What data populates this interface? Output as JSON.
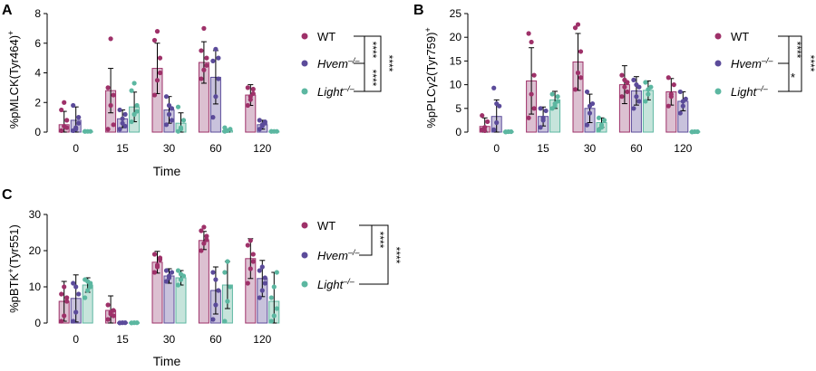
{
  "colors": {
    "wt": "#9e3169",
    "hvem": "#5b4b9a",
    "light": "#5cb7a1"
  },
  "chart_data": [
    {
      "panel": "A",
      "type": "bar",
      "ylabel_main": "%pMLCK(Tyr464)",
      "ylabel_sup": "+",
      "xlabel": "Time",
      "categories": [
        "0",
        "15",
        "30",
        "60",
        "120"
      ],
      "ylim": [
        0,
        8
      ],
      "yticks": [
        "0",
        "2",
        "4",
        "6",
        "8"
      ],
      "series": [
        {
          "name": "WT",
          "values": [
            0.5,
            2.8,
            4.3,
            4.7,
            2.5
          ],
          "err": [
            0.9,
            1.5,
            1.7,
            1.4,
            0.7
          ]
        },
        {
          "name": "Hvem",
          "values": [
            0.8,
            0.9,
            1.5,
            3.7,
            0.5
          ],
          "err": [
            0.9,
            0.6,
            0.9,
            1.8,
            0.3
          ]
        },
        {
          "name": "Light",
          "values": [
            0.05,
            1.7,
            0.6,
            0.1,
            0.05
          ],
          "err": [
            0.05,
            1.0,
            0.7,
            0.1,
            0.05
          ]
        }
      ],
      "points": [
        [
          [
            0.1,
            0.4,
            0.8,
            1.5,
            2.0,
            0.3
          ],
          [
            0.2,
            1.8,
            2.5,
            3.0,
            6.3,
            0.5
          ],
          [
            2.5,
            3.5,
            5.0,
            6.2,
            6.8,
            4.0
          ],
          [
            3.6,
            4.2,
            5.0,
            5.5,
            7.0,
            4.5
          ],
          [
            1.8,
            2.2,
            2.6,
            3.0,
            2.4,
            2.9
          ]
        ],
        [
          [
            0.1,
            0.3,
            1.0,
            1.8,
            0.2,
            0.6
          ],
          [
            0.2,
            0.6,
            1.2,
            1.5,
            0.9,
            0.4
          ],
          [
            0.5,
            1.2,
            1.6,
            2.4,
            1.8,
            0.8
          ],
          [
            1.0,
            2.4,
            3.6,
            4.8,
            5.6,
            5.0
          ],
          [
            0.2,
            0.5,
            0.7,
            0.8,
            0.4,
            0.6
          ]
        ],
        [
          [
            0.05,
            0.05,
            0.05,
            0.05
          ],
          [
            0.7,
            1.2,
            1.8,
            2.8,
            3.3,
            1.4
          ],
          [
            0.05,
            0.3,
            0.8,
            1.7,
            0.2
          ],
          [
            0.05,
            0.1,
            0.2,
            0.3
          ],
          [
            0.05,
            0.05,
            0.05,
            0.05
          ]
        ]
      ],
      "significance": [
        "****",
        "****",
        "****"
      ]
    },
    {
      "panel": "B",
      "type": "bar",
      "ylabel_main": "%pPLCγ2(Tyr759)",
      "ylabel_sup": "+",
      "xlabel": "",
      "categories": [
        "0",
        "15",
        "30",
        "60",
        "120"
      ],
      "ylim": [
        0,
        25
      ],
      "yticks": [
        "0",
        "5",
        "10",
        "15",
        "20",
        "25"
      ],
      "series": [
        {
          "name": "WT",
          "values": [
            1.2,
            10.8,
            14.8,
            10.0,
            8.5
          ],
          "err": [
            1.8,
            7.0,
            6.0,
            4.0,
            2.8
          ]
        },
        {
          "name": "Hvem",
          "values": [
            3.3,
            3.3,
            5.0,
            8.7,
            6.5
          ],
          "err": [
            3.5,
            2.0,
            3.0,
            3.0,
            2.0
          ]
        },
        {
          "name": "Light",
          "values": [
            0.1,
            6.8,
            2.0,
            8.8,
            0.1
          ],
          "err": [
            0.1,
            1.8,
            1.0,
            2.0,
            0.1
          ]
        }
      ],
      "points": [
        [
          [
            0.5,
            1.0,
            2.2,
            3.5,
            0.3
          ],
          [
            3.0,
            8.0,
            12.0,
            20.8,
            19.0,
            5.0
          ],
          [
            9.0,
            12.5,
            17.0,
            22.0,
            22.7,
            11.5
          ],
          [
            7.5,
            9.5,
            10.5,
            12.0,
            11.0,
            8.5
          ],
          [
            5.5,
            7.5,
            10.0,
            11.5,
            8.0
          ]
        ],
        [
          [
            0.5,
            2.0,
            5.5,
            9.3,
            6.0
          ],
          [
            1.0,
            2.5,
            4.5,
            5.0,
            3.0
          ],
          [
            1.5,
            4.0,
            6.0,
            8.5,
            5.5
          ],
          [
            5.0,
            7.5,
            9.5,
            11.0,
            10.0,
            6.5
          ],
          [
            4.0,
            5.5,
            7.0,
            8.5,
            6.5
          ]
        ],
        [
          [
            0.05,
            0.1,
            0.1,
            0.05
          ],
          [
            5.0,
            6.0,
            7.5,
            8.0,
            5.5,
            6.5
          ],
          [
            0.5,
            1.5,
            2.5,
            3.0,
            1.0
          ],
          [
            6.5,
            8.0,
            9.5,
            10.5,
            9.0
          ],
          [
            0.05,
            0.1,
            0.1,
            0.05
          ]
        ]
      ],
      "significance": [
        "****",
        "*",
        "****"
      ]
    },
    {
      "panel": "C",
      "type": "bar",
      "ylabel_main": "%pBTK",
      "ylabel_sup": "+",
      "ylabel_tail": "(Tyr551)",
      "xlabel": "Time",
      "categories": [
        "0",
        "15",
        "30",
        "60",
        "120"
      ],
      "ylim": [
        0,
        30
      ],
      "yticks": [
        "0",
        "10",
        "20",
        "30"
      ],
      "series": [
        {
          "name": "WT",
          "values": [
            6.0,
            3.5,
            16.8,
            22.8,
            17.8
          ],
          "err": [
            5.5,
            4.0,
            3.0,
            2.5,
            5.5
          ]
        },
        {
          "name": "Hvem",
          "values": [
            6.8,
            0.1,
            13.0,
            9.0,
            12.3
          ],
          "err": [
            6.5,
            0.1,
            2.0,
            6.5,
            5.0
          ]
        },
        {
          "name": "Light",
          "values": [
            10.5,
            0.1,
            12.5,
            10.5,
            6.0
          ],
          "err": [
            2.0,
            0.1,
            2.0,
            6.5,
            8.0
          ]
        }
      ],
      "points": [
        [
          [
            0.5,
            2.0,
            6.0,
            8.0,
            10.0,
            7.0
          ],
          [
            1.0,
            2.5,
            3.5,
            5.0,
            3.0,
            2.0
          ],
          [
            14.0,
            15.5,
            17.5,
            19.0,
            16.0,
            18.0
          ],
          [
            20.0,
            22.0,
            24.0,
            25.5,
            26.5,
            23.0
          ],
          [
            11.0,
            15.0,
            19.0,
            21.5,
            22.8,
            17.0
          ]
        ],
        [
          [
            0.5,
            3.0,
            8.0,
            11.0,
            10.0
          ],
          [
            0.05,
            0.1,
            0.1,
            0.05
          ],
          [
            11.5,
            12.5,
            14.0,
            14.5,
            13.0
          ],
          [
            1.0,
            5.0,
            9.0,
            14.0,
            12.0
          ],
          [
            7.0,
            9.0,
            12.5,
            14.5,
            15.5,
            11.0
          ]
        ],
        [
          [
            7.0,
            9.0,
            11.0,
            12.0,
            11.5,
            10.0
          ],
          [
            0.05,
            0.1,
            0.1,
            0.05
          ],
          [
            10.5,
            12.0,
            13.0,
            14.5,
            13.5
          ],
          [
            0.5,
            6.0,
            10.0,
            14.0,
            17.0
          ],
          [
            0.5,
            2.0,
            4.0,
            7.0,
            10.0,
            14.0
          ]
        ]
      ],
      "significance": [
        "****",
        "****"
      ]
    }
  ],
  "legend": {
    "wt": "WT",
    "hvem": "Hvem",
    "light": "Light",
    "sup": "–/–"
  }
}
